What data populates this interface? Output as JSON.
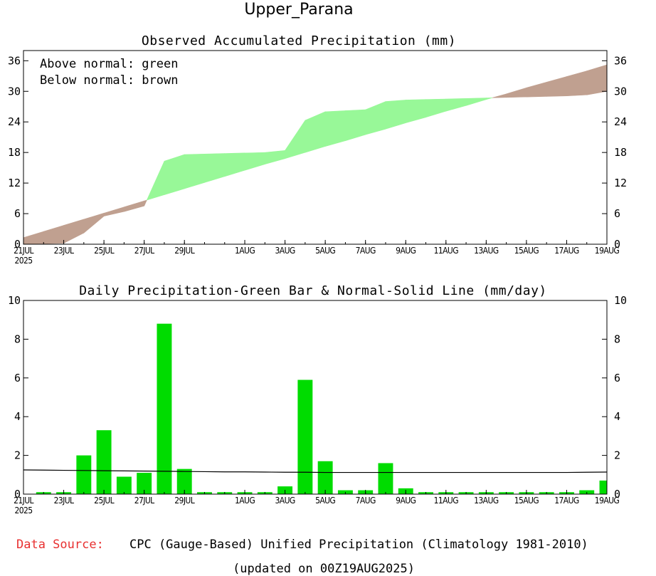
{
  "page_title": "Upper_Parana",
  "footer": {
    "source_label": "Data Source:",
    "source_text": "CPC (Gauge-Based) Unified Precipitation (Climatology 1981-2010)",
    "updated": "(updated on 00Z19AUG2025)"
  },
  "colors": {
    "above": "#98f898",
    "below": "#c0a090",
    "bar": "#00dc00",
    "source_label": "#e83030"
  },
  "chart_data": [
    {
      "type": "area",
      "title": "Observed Accumulated Precipitation (mm)",
      "legend": [
        "Above normal: green",
        "Below normal: brown"
      ],
      "legend_position": "top-left",
      "ylim": [
        0,
        38
      ],
      "yticks": [
        0,
        6,
        12,
        18,
        24,
        30,
        36
      ],
      "day_range": [
        0,
        29
      ],
      "x_ticks": [
        {
          "day": 0,
          "label": "21JUL",
          "sub": "2025"
        },
        {
          "day": 2,
          "label": "23JUL"
        },
        {
          "day": 4,
          "label": "25JUL"
        },
        {
          "day": 6,
          "label": "27JUL"
        },
        {
          "day": 8,
          "label": "29JUL"
        },
        {
          "day": 11,
          "label": "1AUG"
        },
        {
          "day": 13,
          "label": "3AUG"
        },
        {
          "day": 15,
          "label": "5AUG"
        },
        {
          "day": 17,
          "label": "7AUG"
        },
        {
          "day": 19,
          "label": "9AUG"
        },
        {
          "day": 21,
          "label": "11AUG"
        },
        {
          "day": 23,
          "label": "13AUG"
        },
        {
          "day": 25,
          "label": "15AUG"
        },
        {
          "day": 27,
          "label": "17AUG"
        },
        {
          "day": 29,
          "label": "19AUG"
        }
      ],
      "observed": [
        0.0,
        0.1,
        0.2,
        2.2,
        5.5,
        6.4,
        7.5,
        16.3,
        17.6,
        17.7,
        17.8,
        17.9,
        18.0,
        18.4,
        24.3,
        26.0,
        26.2,
        26.4,
        28.0,
        28.3,
        28.4,
        28.5,
        28.6,
        28.7,
        28.8,
        28.9,
        29.0,
        29.1,
        29.3,
        30.0
      ],
      "normal": [
        1.3,
        2.5,
        3.7,
        4.9,
        6.1,
        7.3,
        8.5,
        9.7,
        10.9,
        12.1,
        13.3,
        14.5,
        15.7,
        16.8,
        18.0,
        19.2,
        20.3,
        21.5,
        22.6,
        23.8,
        24.9,
        26.1,
        27.2,
        28.4,
        29.5,
        30.7,
        31.8,
        32.9,
        34.0,
        35.2
      ]
    },
    {
      "type": "bar",
      "title": "Daily Precipitation-Green Bar & Normal-Solid Line (mm/day)",
      "ylim": [
        0,
        10
      ],
      "yticks": [
        0,
        2,
        4,
        6,
        8,
        10
      ],
      "x_ticks_same_as_above": true,
      "daily": [
        0.0,
        0.1,
        0.1,
        2.0,
        3.3,
        0.9,
        1.1,
        8.8,
        1.3,
        0.1,
        0.1,
        0.1,
        0.1,
        0.4,
        5.9,
        1.7,
        0.2,
        0.2,
        1.6,
        0.3,
        0.1,
        0.1,
        0.1,
        0.1,
        0.1,
        0.1,
        0.1,
        0.1,
        0.2,
        0.7
      ],
      "normal_line": [
        1.25,
        1.24,
        1.23,
        1.22,
        1.21,
        1.2,
        1.19,
        1.18,
        1.17,
        1.16,
        1.15,
        1.15,
        1.14,
        1.13,
        1.13,
        1.12,
        1.12,
        1.12,
        1.12,
        1.12,
        1.12,
        1.12,
        1.12,
        1.12,
        1.12,
        1.12,
        1.12,
        1.12,
        1.13,
        1.14
      ]
    }
  ]
}
